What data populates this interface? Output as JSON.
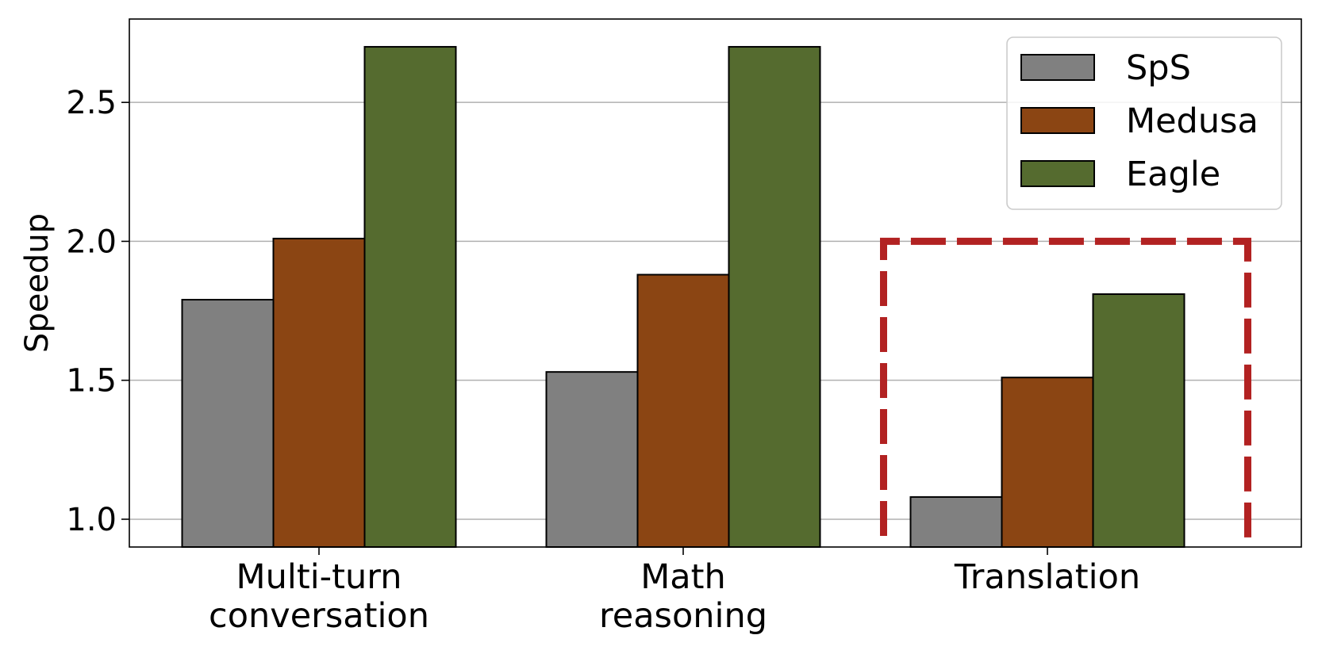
{
  "chart_data": {
    "type": "bar",
    "ylabel": "Speedup",
    "categories": [
      "Multi-turn\nconversation",
      "Math\nreasoning",
      "Translation"
    ],
    "ylim": [
      0.9,
      2.8
    ],
    "yticks": [
      1.0,
      1.5,
      2.0,
      2.5
    ],
    "ytick_labels": [
      "1.0",
      "1.5",
      "2.0",
      "2.5"
    ],
    "grid": "horizontal",
    "legend_position": "top-right",
    "series": [
      {
        "name": "SpS",
        "color": "#808080",
        "values": [
          1.79,
          1.53,
          1.08
        ]
      },
      {
        "name": "Medusa",
        "color": "#8b4513",
        "values": [
          2.01,
          1.88,
          1.51
        ]
      },
      {
        "name": "Eagle",
        "color": "#556b2f",
        "values": [
          2.7,
          2.7,
          1.81
        ]
      }
    ],
    "highlight": {
      "category": "Translation",
      "top_value": 2.0,
      "style": "dashed",
      "color": "#b22222"
    }
  }
}
